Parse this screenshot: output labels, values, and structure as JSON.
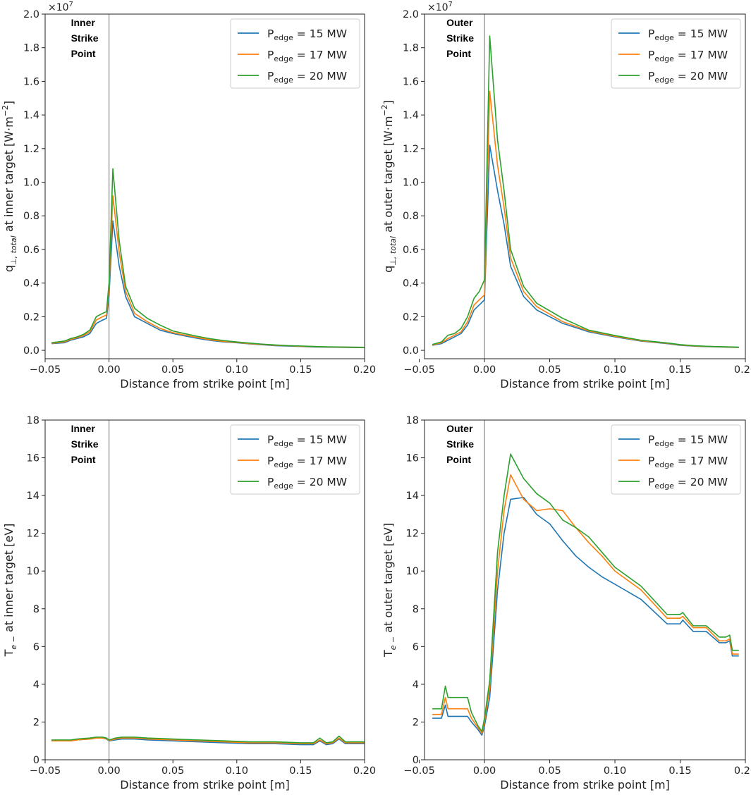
{
  "chart_data": [
    {
      "type": "line",
      "panel": "top-left",
      "xlabel": "Distance from strike point [m]",
      "ylabel": "q⊥, total at inner target [W·m⁻²]",
      "ylabel_main": "q",
      "ylabel_sub": "⊥, total",
      "ylabel_tail": " at inner target [W·m",
      "ylabel_sup": "−2",
      "ylabel_close": "]",
      "multiplier": "×10",
      "multiplier_exp": "7",
      "scale": 10000000,
      "xlim": [
        -0.05,
        0.2
      ],
      "ylim": [
        -0.05,
        2.0
      ],
      "xticks": [
        -0.05,
        0.0,
        0.05,
        0.1,
        0.15,
        0.2
      ],
      "xtick_labels": [
        "−0.05",
        "0.00",
        "0.05",
        "0.10",
        "0.15",
        "0.20"
      ],
      "yticks": [
        0.0,
        0.2,
        0.4,
        0.6,
        0.8,
        1.0,
        1.2,
        1.4,
        1.6,
        1.8,
        2.0
      ],
      "ytick_labels": [
        "0.0",
        "0.2",
        "0.4",
        "0.6",
        "0.8",
        "1.0",
        "1.2",
        "1.4",
        "1.6",
        "1.8",
        "2.0"
      ],
      "vline_x": 0.0,
      "annotation": [
        "Inner",
        "Strike",
        "Point"
      ],
      "legend_location": "top-right",
      "series": [
        {
          "name": "15",
          "color": "#1f77b4",
          "x": [
            -0.045,
            -0.035,
            -0.03,
            -0.025,
            -0.02,
            -0.015,
            -0.01,
            -0.005,
            -0.002,
            0.0,
            0.003,
            0.008,
            0.013,
            0.02,
            0.03,
            0.04,
            0.05,
            0.06,
            0.07,
            0.08,
            0.09,
            0.1,
            0.11,
            0.12,
            0.13,
            0.14,
            0.15,
            0.16,
            0.17,
            0.18,
            0.19,
            0.2
          ],
          "y": [
            0.04,
            0.045,
            0.06,
            0.07,
            0.08,
            0.1,
            0.16,
            0.18,
            0.19,
            0.32,
            0.77,
            0.5,
            0.32,
            0.2,
            0.16,
            0.12,
            0.1,
            0.085,
            0.07,
            0.058,
            0.05,
            0.045,
            0.038,
            0.033,
            0.028,
            0.025,
            0.023,
            0.02,
            0.019,
            0.018,
            0.017,
            0.016
          ]
        },
        {
          "name": "17",
          "color": "#ff7f0e",
          "x": [
            -0.045,
            -0.035,
            -0.03,
            -0.025,
            -0.02,
            -0.015,
            -0.01,
            -0.005,
            -0.002,
            0.0,
            0.003,
            0.008,
            0.013,
            0.02,
            0.03,
            0.04,
            0.05,
            0.06,
            0.07,
            0.08,
            0.09,
            0.1,
            0.11,
            0.12,
            0.13,
            0.14,
            0.15,
            0.16,
            0.17,
            0.18,
            0.19,
            0.2
          ],
          "y": [
            0.042,
            0.05,
            0.065,
            0.075,
            0.088,
            0.11,
            0.18,
            0.2,
            0.21,
            0.36,
            0.92,
            0.58,
            0.35,
            0.22,
            0.17,
            0.13,
            0.105,
            0.09,
            0.075,
            0.062,
            0.053,
            0.047,
            0.04,
            0.035,
            0.03,
            0.027,
            0.024,
            0.022,
            0.02,
            0.019,
            0.018,
            0.017
          ]
        },
        {
          "name": "20",
          "color": "#2ca02c",
          "x": [
            -0.045,
            -0.035,
            -0.03,
            -0.025,
            -0.02,
            -0.015,
            -0.01,
            -0.005,
            -0.002,
            0.0,
            0.003,
            0.008,
            0.013,
            0.02,
            0.03,
            0.04,
            0.05,
            0.06,
            0.07,
            0.08,
            0.09,
            0.1,
            0.11,
            0.12,
            0.13,
            0.14,
            0.15,
            0.16,
            0.17,
            0.18,
            0.19,
            0.2
          ],
          "y": [
            0.045,
            0.055,
            0.07,
            0.08,
            0.095,
            0.12,
            0.2,
            0.22,
            0.23,
            0.4,
            1.08,
            0.65,
            0.38,
            0.25,
            0.19,
            0.15,
            0.115,
            0.098,
            0.082,
            0.068,
            0.058,
            0.05,
            0.043,
            0.037,
            0.032,
            0.028,
            0.026,
            0.023,
            0.021,
            0.02,
            0.019,
            0.018
          ]
        }
      ]
    },
    {
      "type": "line",
      "panel": "top-right",
      "xlabel": "Distance from strike point [m]",
      "ylabel": "q⊥, total at outer target [W·m⁻²]",
      "ylabel_main": "q",
      "ylabel_sub": "⊥, total",
      "ylabel_tail": " at outer target [W·m",
      "ylabel_sup": "−2",
      "ylabel_close": "]",
      "multiplier": "×10",
      "multiplier_exp": "7",
      "scale": 10000000,
      "xlim": [
        -0.046,
        0.2
      ],
      "ylim": [
        -0.05,
        2.0
      ],
      "xticks": [
        -0.05,
        0.0,
        0.05,
        0.1,
        0.15,
        0.2
      ],
      "xtick_labels": [
        "−0.05",
        "0.00",
        "0.05",
        "0.10",
        "0.15",
        "0.20"
      ],
      "yticks": [
        0.0,
        0.2,
        0.4,
        0.6,
        0.8,
        1.0,
        1.2,
        1.4,
        1.6,
        1.8,
        2.0
      ],
      "ytick_labels": [
        "0.0",
        "0.2",
        "0.4",
        "0.6",
        "0.8",
        "1.0",
        "1.2",
        "1.4",
        "1.6",
        "1.8",
        "2.0"
      ],
      "vline_x": 0.0,
      "annotation": [
        "Outer",
        "Strike",
        "Point"
      ],
      "legend_location": "top-right",
      "series": [
        {
          "name": "15",
          "color": "#1f77b4",
          "x": [
            -0.04,
            -0.033,
            -0.028,
            -0.023,
            -0.018,
            -0.013,
            -0.008,
            -0.004,
            0.0,
            0.004,
            0.01,
            0.015,
            0.02,
            0.03,
            0.04,
            0.06,
            0.08,
            0.1,
            0.12,
            0.14,
            0.15,
            0.16,
            0.17,
            0.18,
            0.19,
            0.195
          ],
          "y": [
            0.03,
            0.04,
            0.06,
            0.08,
            0.1,
            0.15,
            0.24,
            0.27,
            0.3,
            1.22,
            0.95,
            0.75,
            0.5,
            0.32,
            0.24,
            0.16,
            0.11,
            0.08,
            0.055,
            0.04,
            0.03,
            0.025,
            0.022,
            0.02,
            0.018,
            0.017
          ]
        },
        {
          "name": "17",
          "color": "#ff7f0e",
          "x": [
            -0.04,
            -0.033,
            -0.028,
            -0.023,
            -0.018,
            -0.013,
            -0.008,
            -0.004,
            0.0,
            0.004,
            0.01,
            0.015,
            0.02,
            0.03,
            0.04,
            0.06,
            0.08,
            0.1,
            0.12,
            0.14,
            0.15,
            0.16,
            0.17,
            0.18,
            0.19,
            0.195
          ],
          "y": [
            0.032,
            0.045,
            0.07,
            0.09,
            0.11,
            0.17,
            0.27,
            0.3,
            0.33,
            1.54,
            1.1,
            0.85,
            0.55,
            0.35,
            0.26,
            0.17,
            0.115,
            0.083,
            0.057,
            0.042,
            0.032,
            0.026,
            0.023,
            0.021,
            0.019,
            0.018
          ]
        },
        {
          "name": "20",
          "color": "#2ca02c",
          "x": [
            -0.04,
            -0.033,
            -0.028,
            -0.023,
            -0.018,
            -0.013,
            -0.008,
            -0.004,
            0.0,
            0.004,
            0.01,
            0.015,
            0.02,
            0.03,
            0.04,
            0.06,
            0.08,
            0.1,
            0.12,
            0.14,
            0.15,
            0.16,
            0.17,
            0.18,
            0.19,
            0.195
          ],
          "y": [
            0.035,
            0.05,
            0.09,
            0.1,
            0.13,
            0.2,
            0.31,
            0.35,
            0.42,
            1.87,
            1.25,
            0.95,
            0.6,
            0.38,
            0.28,
            0.19,
            0.12,
            0.088,
            0.06,
            0.044,
            0.034,
            0.028,
            0.024,
            0.022,
            0.02,
            0.019
          ]
        }
      ]
    },
    {
      "type": "line",
      "panel": "bottom-left",
      "xlabel": "Distance from strike point [m]",
      "ylabel": "Te⁻ at inner target [eV]",
      "ylabel_main": "T",
      "ylabel_sub": "e −",
      "ylabel_tail": " at inner target [eV]",
      "ylabel_sup": "",
      "ylabel_close": "",
      "multiplier": "",
      "multiplier_exp": "",
      "scale": 1,
      "xlim": [
        -0.05,
        0.2
      ],
      "ylim": [
        0,
        18
      ],
      "xticks": [
        -0.05,
        0.0,
        0.05,
        0.1,
        0.15,
        0.2
      ],
      "xtick_labels": [
        "−0.05",
        "0.00",
        "0.05",
        "0.10",
        "0.15",
        "0.20"
      ],
      "yticks": [
        0,
        2,
        4,
        6,
        8,
        10,
        12,
        14,
        16,
        18
      ],
      "ytick_labels": [
        "0",
        "2",
        "4",
        "6",
        "8",
        "10",
        "12",
        "14",
        "16",
        "18"
      ],
      "vline_x": 0.0,
      "annotation": [
        "Inner",
        "Strike",
        "Point"
      ],
      "legend_location": "top-right",
      "series": [
        {
          "name": "15",
          "color": "#1f77b4",
          "x": [
            -0.045,
            -0.035,
            -0.03,
            -0.025,
            -0.015,
            -0.01,
            -0.005,
            -0.002,
            0.0,
            0.005,
            0.01,
            0.02,
            0.03,
            0.05,
            0.07,
            0.09,
            0.11,
            0.13,
            0.15,
            0.16,
            0.165,
            0.17,
            0.175,
            0.18,
            0.185,
            0.19,
            0.2
          ],
          "y": [
            1.0,
            1.0,
            1.0,
            1.05,
            1.1,
            1.15,
            1.15,
            1.1,
            1.0,
            1.05,
            1.1,
            1.1,
            1.05,
            1.0,
            0.95,
            0.9,
            0.85,
            0.85,
            0.8,
            0.8,
            1.0,
            0.8,
            0.85,
            1.1,
            0.85,
            0.85,
            0.85
          ]
        },
        {
          "name": "17",
          "color": "#ff7f0e",
          "x": [
            -0.045,
            -0.035,
            -0.03,
            -0.025,
            -0.015,
            -0.01,
            -0.005,
            -0.002,
            0.0,
            0.005,
            0.01,
            0.02,
            0.03,
            0.05,
            0.07,
            0.09,
            0.11,
            0.13,
            0.15,
            0.16,
            0.165,
            0.17,
            0.175,
            0.18,
            0.185,
            0.19,
            0.2
          ],
          "y": [
            1.0,
            1.0,
            1.0,
            1.05,
            1.1,
            1.15,
            1.15,
            1.12,
            1.02,
            1.1,
            1.15,
            1.15,
            1.1,
            1.05,
            1.0,
            0.95,
            0.9,
            0.9,
            0.85,
            0.85,
            1.05,
            0.85,
            0.9,
            1.15,
            0.9,
            0.9,
            0.9
          ]
        },
        {
          "name": "20",
          "color": "#2ca02c",
          "x": [
            -0.045,
            -0.035,
            -0.03,
            -0.025,
            -0.015,
            -0.01,
            -0.005,
            -0.002,
            0.0,
            0.005,
            0.01,
            0.02,
            0.03,
            0.05,
            0.07,
            0.09,
            0.11,
            0.13,
            0.15,
            0.16,
            0.165,
            0.17,
            0.175,
            0.18,
            0.185,
            0.19,
            0.2
          ],
          "y": [
            1.05,
            1.05,
            1.05,
            1.1,
            1.15,
            1.2,
            1.2,
            1.15,
            1.05,
            1.15,
            1.2,
            1.2,
            1.15,
            1.1,
            1.05,
            1.0,
            0.95,
            0.95,
            0.9,
            0.9,
            1.15,
            0.9,
            0.95,
            1.25,
            0.95,
            0.95,
            0.95
          ]
        }
      ]
    },
    {
      "type": "line",
      "panel": "bottom-right",
      "xlabel": "Distance from strike point [m]",
      "ylabel": "Te⁻ at outer target [eV]",
      "ylabel_main": "T",
      "ylabel_sub": "e −",
      "ylabel_tail": " at outer target [eV]",
      "ylabel_sup": "",
      "ylabel_close": "",
      "multiplier": "",
      "multiplier_exp": "",
      "scale": 1,
      "xlim": [
        -0.046,
        0.2
      ],
      "ylim": [
        0,
        18
      ],
      "xticks": [
        -0.05,
        0.0,
        0.05,
        0.1,
        0.15,
        0.2
      ],
      "xtick_labels": [
        "−0.05",
        "0.00",
        "0.05",
        "0.10",
        "0.15",
        "0.20"
      ],
      "yticks": [
        0,
        2,
        4,
        6,
        8,
        10,
        12,
        14,
        16,
        18
      ],
      "ytick_labels": [
        "0",
        "2",
        "4",
        "6",
        "8",
        "10",
        "12",
        "14",
        "16",
        "18"
      ],
      "vline_x": 0.0,
      "annotation": [
        "Outer",
        "Strike",
        "Point"
      ],
      "legend_location": "top-right",
      "series": [
        {
          "name": "15",
          "color": "#1f77b4",
          "x": [
            -0.04,
            -0.033,
            -0.03,
            -0.028,
            -0.02,
            -0.013,
            -0.01,
            -0.005,
            -0.002,
            0.0,
            0.004,
            0.01,
            0.015,
            0.02,
            0.03,
            0.04,
            0.05,
            0.06,
            0.07,
            0.08,
            0.09,
            0.1,
            0.12,
            0.14,
            0.15,
            0.152,
            0.16,
            0.165,
            0.17,
            0.18,
            0.185,
            0.188,
            0.19,
            0.195
          ],
          "y": [
            2.2,
            2.2,
            2.9,
            2.3,
            2.3,
            2.3,
            2.0,
            1.6,
            1.3,
            1.8,
            3.3,
            9.0,
            12.0,
            13.8,
            13.9,
            13.0,
            12.5,
            11.6,
            10.8,
            10.2,
            9.7,
            9.3,
            8.5,
            7.2,
            7.2,
            7.4,
            6.8,
            6.8,
            6.8,
            6.2,
            6.2,
            6.3,
            5.5,
            5.5
          ]
        },
        {
          "name": "17",
          "color": "#ff7f0e",
          "x": [
            -0.04,
            -0.033,
            -0.03,
            -0.028,
            -0.02,
            -0.013,
            -0.01,
            -0.005,
            -0.002,
            0.0,
            0.004,
            0.01,
            0.015,
            0.02,
            0.03,
            0.04,
            0.05,
            0.06,
            0.07,
            0.08,
            0.09,
            0.1,
            0.12,
            0.14,
            0.15,
            0.152,
            0.16,
            0.165,
            0.17,
            0.18,
            0.185,
            0.188,
            0.19,
            0.195
          ],
          "y": [
            2.4,
            2.4,
            3.3,
            2.7,
            2.7,
            2.7,
            2.2,
            1.7,
            1.4,
            2.0,
            3.8,
            10.0,
            13.2,
            15.1,
            13.8,
            13.2,
            13.3,
            13.2,
            12.3,
            11.5,
            10.8,
            10.0,
            9.0,
            7.5,
            7.5,
            7.6,
            7.0,
            7.0,
            7.0,
            6.3,
            6.3,
            6.4,
            5.6,
            5.6
          ]
        },
        {
          "name": "20",
          "color": "#2ca02c",
          "x": [
            -0.04,
            -0.033,
            -0.03,
            -0.028,
            -0.02,
            -0.013,
            -0.01,
            -0.005,
            -0.002,
            0.0,
            0.004,
            0.01,
            0.015,
            0.02,
            0.03,
            0.04,
            0.05,
            0.06,
            0.07,
            0.08,
            0.09,
            0.1,
            0.12,
            0.14,
            0.15,
            0.152,
            0.16,
            0.165,
            0.17,
            0.18,
            0.185,
            0.188,
            0.19,
            0.195
          ],
          "y": [
            2.7,
            2.7,
            3.9,
            3.3,
            3.3,
            3.3,
            2.5,
            1.8,
            1.5,
            2.2,
            4.2,
            11.0,
            14.0,
            16.2,
            14.9,
            14.1,
            13.6,
            12.7,
            12.3,
            11.8,
            11.0,
            10.2,
            9.2,
            7.7,
            7.7,
            7.8,
            7.1,
            7.1,
            7.1,
            6.5,
            6.5,
            6.6,
            5.8,
            5.8
          ]
        }
      ]
    }
  ],
  "legend": {
    "prefix": "P",
    "sub": "edge",
    "eq": " = ",
    "unit": " MW"
  },
  "colors": {
    "series_15": "#1f77b4",
    "series_17": "#ff7f0e",
    "series_20": "#2ca02c",
    "vline": "#888888",
    "axis": "#222222"
  }
}
